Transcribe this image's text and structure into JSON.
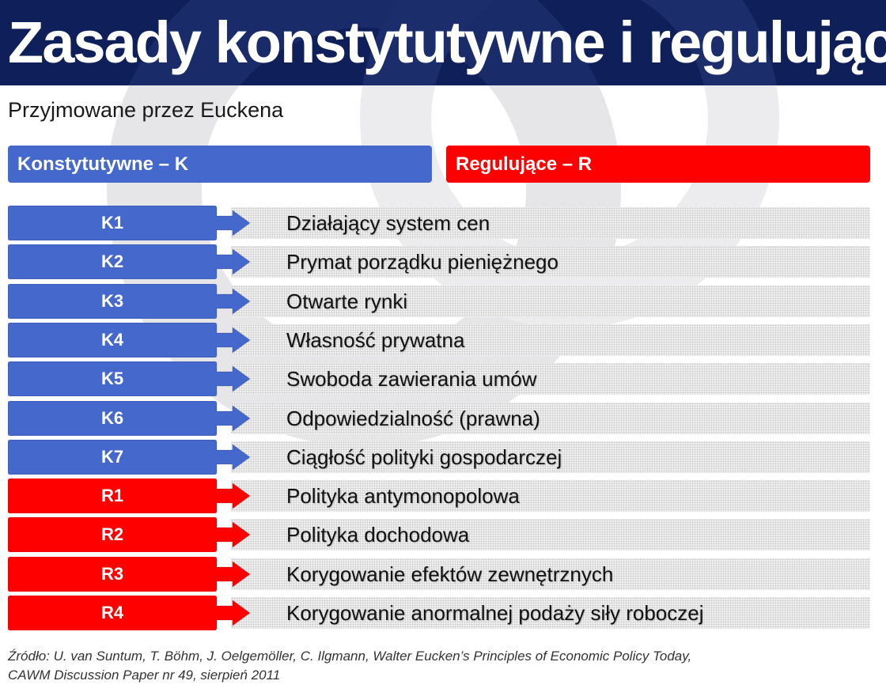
{
  "title": "Zasady konstytutywne i regulujące",
  "subtitle": "Przyjmowane przez Euckena",
  "legend": {
    "constitutive": {
      "label": "Konstytutywne – K",
      "color": "#4468cc"
    },
    "regulative": {
      "label": "Regulujące – R",
      "color": "#ff0000"
    }
  },
  "rows": [
    {
      "code": "K1",
      "text": "Działający system cen",
      "group": "constitutive"
    },
    {
      "code": "K2",
      "text": "Prymat porządku pieniężnego",
      "group": "constitutive"
    },
    {
      "code": "K3",
      "text": "Otwarte rynki",
      "group": "constitutive"
    },
    {
      "code": "K4",
      "text": "Własność prywatna",
      "group": "constitutive"
    },
    {
      "code": "K5",
      "text": "Swoboda zawierania umów",
      "group": "constitutive"
    },
    {
      "code": "K6",
      "text": "Odpowiedzialność (prawna)",
      "group": "constitutive"
    },
    {
      "code": "K7",
      "text": "Ciągłość polityki gospodarczej",
      "group": "constitutive"
    },
    {
      "code": "R1",
      "text": "Polityka antymonopolowa",
      "group": "regulative"
    },
    {
      "code": "R2",
      "text": "Polityka dochodowa",
      "group": "regulative"
    },
    {
      "code": "R3",
      "text": "Korygowanie efektów zewnętrznych",
      "group": "regulative"
    },
    {
      "code": "R4",
      "text": "Korygowanie anormalnej podaży siły roboczej",
      "group": "regulative"
    }
  ],
  "source": {
    "line1": "Źródło: U. van Suntum, T. Böhm, J. Oelgemöller, C. Ilgmann, Walter Eucken’s Principles of Economic Policy Today,",
    "line2": "CAWM Discussion Paper nr 49, sierpień 2011"
  },
  "colors": {
    "header_bg": "#0f1f5a",
    "watermark": "#e8e8ea"
  }
}
